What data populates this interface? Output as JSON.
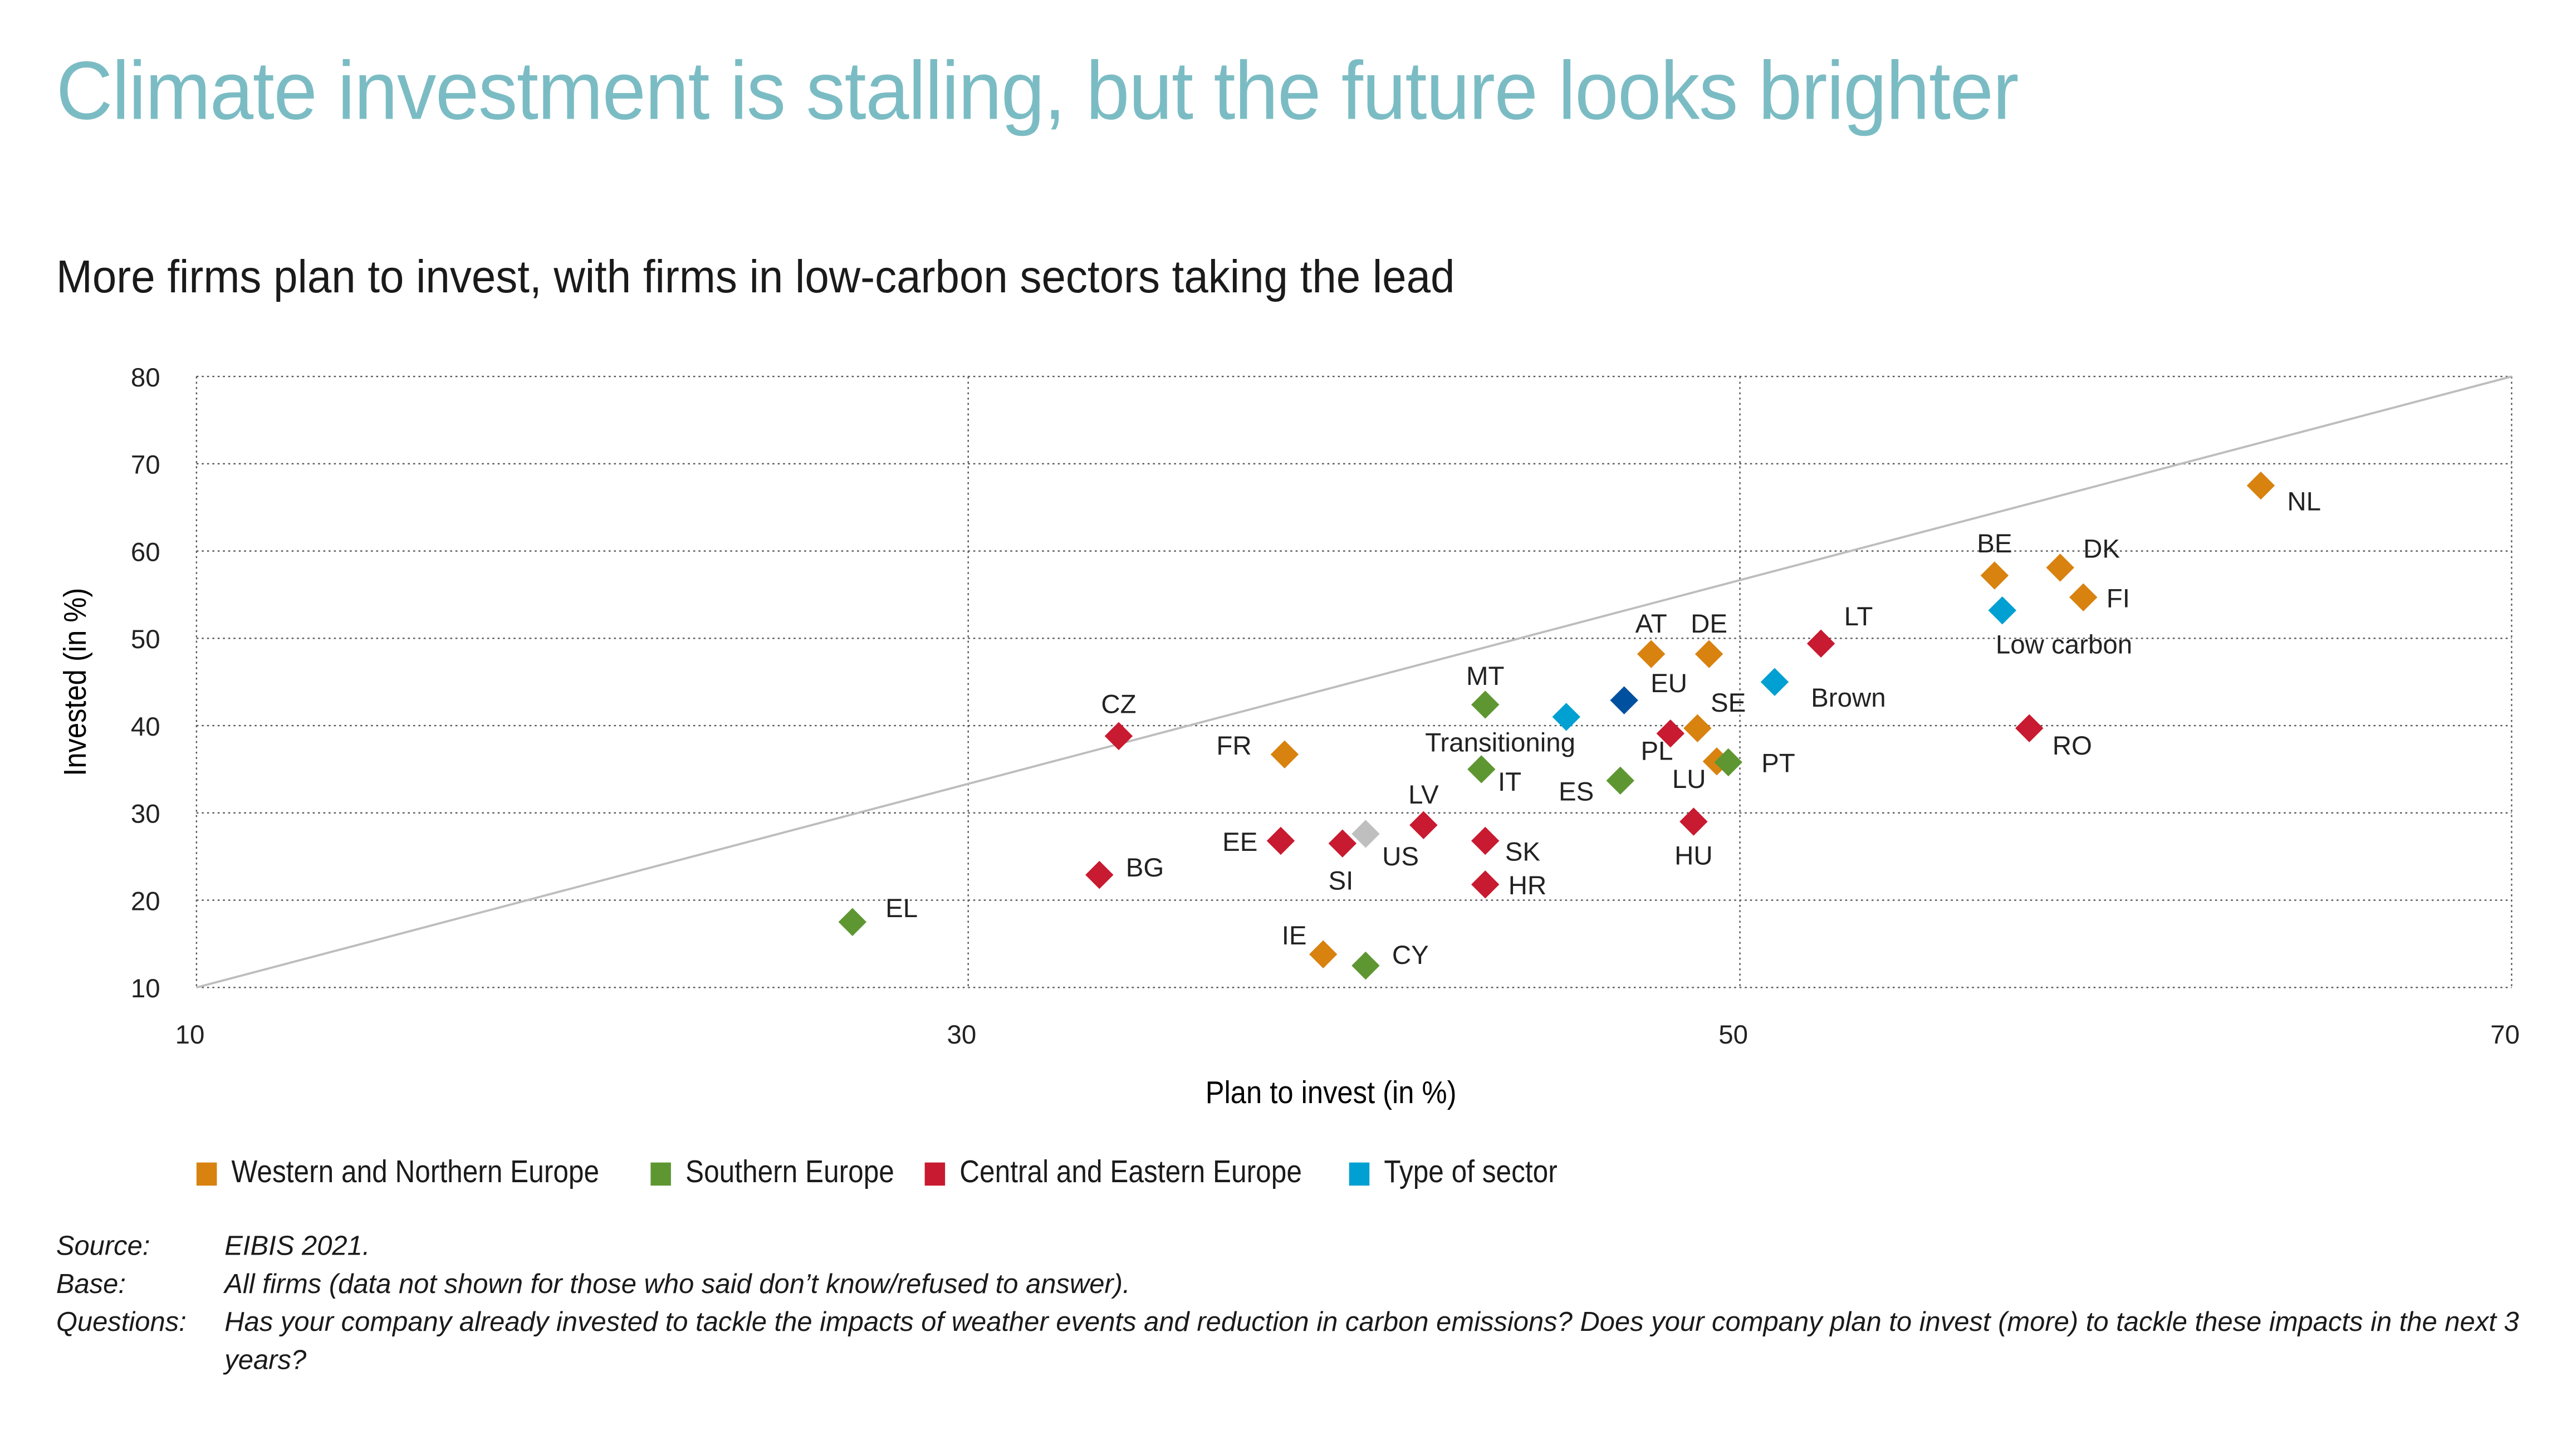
{
  "header": {
    "title": "Climate investment is stalling, but the future looks brighter",
    "subtitle": "More firms plan to invest, with firms in low-carbon sectors taking the lead"
  },
  "chart_data": {
    "type": "scatter",
    "xlabel": "Plan to invest (in %)",
    "ylabel": "Invested (in %)",
    "xlim": [
      10,
      70
    ],
    "ylim": [
      10,
      80
    ],
    "xticks": [
      "10",
      "30",
      "50",
      "70"
    ],
    "yticks": [
      "10",
      "20",
      "30",
      "40",
      "50",
      "60",
      "70",
      "80"
    ],
    "grid": true,
    "reference_line": "45-degree diagonal from (10,10) to (70,80)",
    "legend_placement": "bottom",
    "legend": [
      {
        "label": "Western and Northern Europe",
        "color": "#D8820F"
      },
      {
        "label": "Southern Europe",
        "color": "#5E9732"
      },
      {
        "label": "Central and Eastern Europe",
        "color": "#C81A30"
      },
      {
        "label": "Type of sector",
        "color": "#00A0D2"
      }
    ],
    "group_colors": {
      "west": "#D8820F",
      "south": "#5E9732",
      "cee": "#C81A30",
      "sector": "#00A0D2",
      "eu": "#0050A0",
      "us": "#BFBFBF"
    },
    "points": [
      {
        "label": "NL",
        "x": 63.5,
        "y": 67.5,
        "group": "west"
      },
      {
        "label": "BE",
        "x": 56.6,
        "y": 57.2,
        "group": "west"
      },
      {
        "label": "DK",
        "x": 58.3,
        "y": 58.1,
        "group": "west"
      },
      {
        "label": "FI",
        "x": 58.9,
        "y": 54.7,
        "group": "west"
      },
      {
        "label": "Low carbon",
        "x": 56.8,
        "y": 53.2,
        "group": "sector"
      },
      {
        "label": "LT",
        "x": 52.1,
        "y": 49.4,
        "group": "cee"
      },
      {
        "label": "AT",
        "x": 47.7,
        "y": 48.2,
        "group": "west"
      },
      {
        "label": "DE",
        "x": 49.2,
        "y": 48.2,
        "group": "west"
      },
      {
        "label": "Brown",
        "x": 50.9,
        "y": 45.0,
        "group": "sector"
      },
      {
        "label": "EU",
        "x": 47.0,
        "y": 42.9,
        "group": "eu"
      },
      {
        "label": "RO",
        "x": 57.5,
        "y": 39.7,
        "group": "cee"
      },
      {
        "label": "SE",
        "x": 48.9,
        "y": 39.7,
        "group": "west"
      },
      {
        "label": "PL",
        "x": 48.2,
        "y": 39.1,
        "group": "cee"
      },
      {
        "label": "LU",
        "x": 49.4,
        "y": 35.9,
        "group": "west"
      },
      {
        "label": "PT",
        "x": 49.7,
        "y": 35.8,
        "group": "south"
      },
      {
        "label": "HU",
        "x": 48.8,
        "y": 29.0,
        "group": "cee"
      },
      {
        "label": "ES",
        "x": 46.9,
        "y": 33.7,
        "group": "south"
      },
      {
        "label": "Transitioning",
        "x": 45.5,
        "y": 41.0,
        "group": "sector"
      },
      {
        "label": "MT",
        "x": 43.4,
        "y": 42.4,
        "group": "south"
      },
      {
        "label": "IT",
        "x": 43.3,
        "y": 35.0,
        "group": "south"
      },
      {
        "label": "SK",
        "x": 43.4,
        "y": 26.8,
        "group": "cee"
      },
      {
        "label": "HR",
        "x": 43.4,
        "y": 21.8,
        "group": "cee"
      },
      {
        "label": "LV",
        "x": 41.8,
        "y": 28.6,
        "group": "cee"
      },
      {
        "label": "US",
        "x": 40.3,
        "y": 27.6,
        "group": "us"
      },
      {
        "label": "SI",
        "x": 39.7,
        "y": 26.5,
        "group": "cee"
      },
      {
        "label": "EE",
        "x": 38.1,
        "y": 26.8,
        "group": "cee"
      },
      {
        "label": "FR",
        "x": 38.2,
        "y": 36.7,
        "group": "west"
      },
      {
        "label": "CZ",
        "x": 33.9,
        "y": 38.8,
        "group": "cee"
      },
      {
        "label": "BG",
        "x": 33.4,
        "y": 22.9,
        "group": "cee"
      },
      {
        "label": "IE",
        "x": 39.2,
        "y": 13.8,
        "group": "west"
      },
      {
        "label": "CY",
        "x": 40.3,
        "y": 12.5,
        "group": "south"
      },
      {
        "label": "EL",
        "x": 27.0,
        "y": 17.5,
        "group": "south"
      }
    ]
  },
  "notes": [
    {
      "label": "Source:",
      "text": "EIBIS 2021."
    },
    {
      "label": "Base:",
      "text": "All firms (data not shown for those who said don’t know/refused to answer)."
    },
    {
      "label": "Questions:",
      "text": "Has your company already invested to tackle the impacts of weather events and reduction in carbon emissions? Does your company plan to invest (more) to tackle these impacts in the next 3 years?"
    }
  ]
}
